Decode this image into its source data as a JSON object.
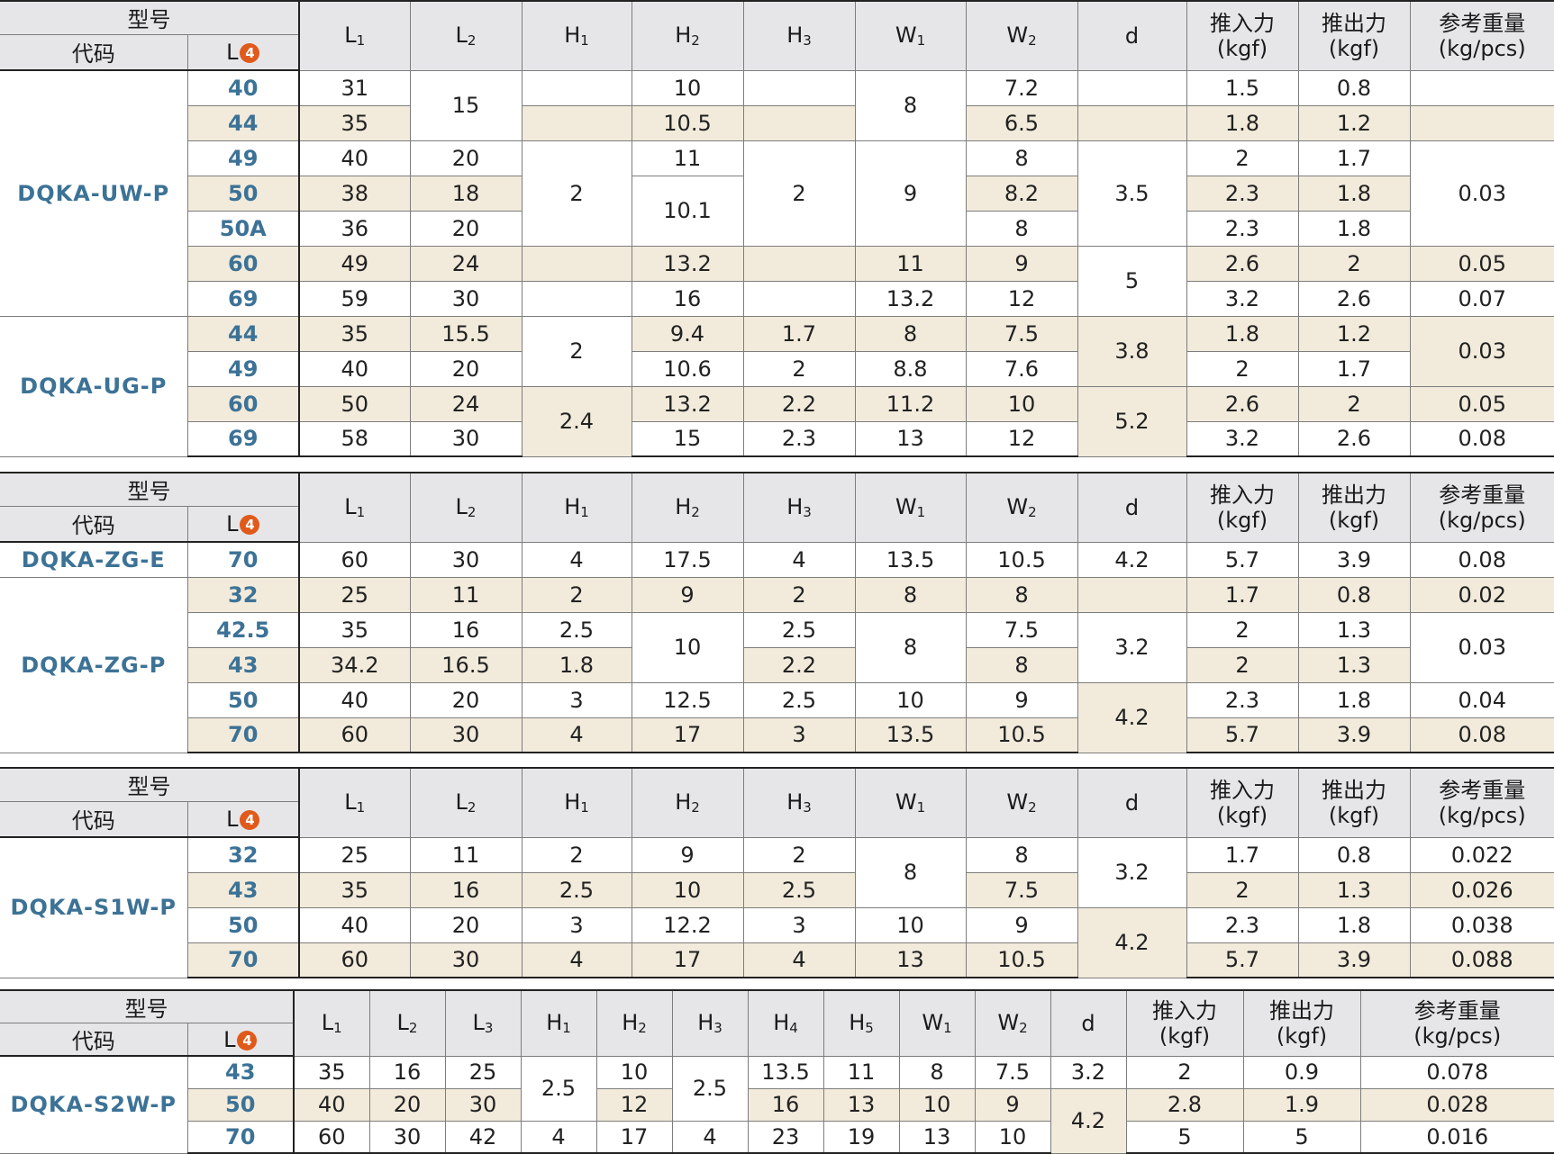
{
  "headers": {
    "model": "型号",
    "code": "代码",
    "l": "L",
    "badge": "4",
    "cols": [
      "L",
      "L",
      "H",
      "H",
      "H",
      "W",
      "W",
      "d"
    ],
    "subs": [
      "1",
      "2",
      "1",
      "2",
      "3",
      "1",
      "2",
      ""
    ],
    "push_in": "推入力",
    "push_out": "推出力",
    "weight": "参考重量",
    "kgf": "(kgf)",
    "kgpcs": "(kg/pcs)"
  },
  "table1": {
    "uw_code": "DQKA-UW-P",
    "ug_code": "DQKA-UG-P",
    "rows": [
      {
        "L": "40",
        "L1": "31",
        "H2": "10",
        "W2": "7.2",
        "push_in": "1.5",
        "push_out": "0.8"
      },
      {
        "L": "44",
        "L1": "35",
        "H2": "10.5",
        "W2": "6.5",
        "push_in": "1.8",
        "push_out": "1.2"
      },
      {
        "L": "49",
        "L1": "40",
        "L2": "20",
        "H2": "11",
        "W2": "8",
        "push_in": "2",
        "push_out": "1.7"
      },
      {
        "L": "50",
        "L1": "38",
        "L2": "18",
        "W2": "8.2",
        "push_in": "2.3",
        "push_out": "1.8"
      },
      {
        "L": "50A",
        "L1": "36",
        "L2": "20",
        "W2": "8",
        "push_in": "2.3",
        "push_out": "1.8"
      },
      {
        "L": "60",
        "L1": "49",
        "L2": "24",
        "H2": "13.2",
        "W1": "11",
        "W2": "9",
        "push_in": "2.6",
        "push_out": "2",
        "weight": "0.05"
      },
      {
        "L": "69",
        "L1": "59",
        "L2": "30",
        "H2": "16",
        "W1": "13.2",
        "W2": "12",
        "push_in": "3.2",
        "push_out": "2.6",
        "weight": "0.07"
      },
      {
        "L": "44",
        "L1": "35",
        "L2": "15.5",
        "H2": "9.4",
        "H3": "1.7",
        "W1": "8",
        "W2": "7.5",
        "push_in": "1.8",
        "push_out": "1.2"
      },
      {
        "L": "49",
        "L1": "40",
        "L2": "20",
        "H2": "10.6",
        "H3": "2",
        "W1": "8.8",
        "W2": "7.6",
        "push_in": "2",
        "push_out": "1.7"
      },
      {
        "L": "60",
        "L1": "50",
        "L2": "24",
        "H2": "13.2",
        "H3": "2.2",
        "W1": "11.2",
        "W2": "10",
        "push_in": "2.6",
        "push_out": "2",
        "weight": "0.05"
      },
      {
        "L": "69",
        "L1": "58",
        "L2": "30",
        "H2": "15",
        "H3": "2.3",
        "W1": "13",
        "W2": "12",
        "push_in": "3.2",
        "push_out": "2.6",
        "weight": "0.08"
      }
    ],
    "merged": {
      "L2_a": "15",
      "H1_a": "2",
      "H1_b": "2",
      "H1_c": "2.4",
      "H2_a": "10.1",
      "H3_a": "2",
      "W1_a": "8",
      "W1_b": "9",
      "d_a": "3.5",
      "d_b": "5",
      "d_c": "3.8",
      "d_d": "5.2",
      "w_a": "0.03",
      "w_b": "0.03"
    }
  },
  "table2": {
    "e_code": "DQKA-ZG-E",
    "p_code": "DQKA-ZG-P",
    "rows": [
      {
        "L": "70",
        "L1": "60",
        "L2": "30",
        "H1": "4",
        "H2": "17.5",
        "H3": "4",
        "W1": "13.5",
        "W2": "10.5",
        "d": "4.2",
        "push_in": "5.7",
        "push_out": "3.9",
        "weight": "0.08"
      },
      {
        "L": "32",
        "L1": "25",
        "L2": "11",
        "H1": "2",
        "H2": "9",
        "H3": "2",
        "W1": "8",
        "W2": "8",
        "push_in": "1.7",
        "push_out": "0.8",
        "weight": "0.02"
      },
      {
        "L": "42.5",
        "L1": "35",
        "L2": "16",
        "H1": "2.5",
        "H3": "2.5",
        "W2": "7.5",
        "push_in": "2",
        "push_out": "1.3"
      },
      {
        "L": "43",
        "L1": "34.2",
        "L2": "16.5",
        "H1": "1.8",
        "H3": "2.2",
        "W2": "8",
        "push_in": "2",
        "push_out": "1.3"
      },
      {
        "L": "50",
        "L1": "40",
        "L2": "20",
        "H1": "3",
        "H2": "12.5",
        "H3": "2.5",
        "W1": "10",
        "W2": "9",
        "push_in": "2.3",
        "push_out": "1.8",
        "weight": "0.04"
      },
      {
        "L": "70",
        "L1": "60",
        "L2": "30",
        "H1": "4",
        "H2": "17",
        "H3": "3",
        "W1": "13.5",
        "W2": "10.5",
        "push_in": "5.7",
        "push_out": "3.9",
        "weight": "0.08"
      }
    ],
    "merged": {
      "H2_a": "10",
      "W1_a": "8",
      "d_a": "3.2",
      "d_b": "4.2",
      "w_a": "0.03"
    }
  },
  "table3": {
    "code": "DQKA-S1W-P",
    "rows": [
      {
        "L": "32",
        "L1": "25",
        "L2": "11",
        "H1": "2",
        "H2": "9",
        "H3": "2",
        "W2": "8",
        "push_in": "1.7",
        "push_out": "0.8",
        "weight": "0.022"
      },
      {
        "L": "43",
        "L1": "35",
        "L2": "16",
        "H1": "2.5",
        "H2": "10",
        "H3": "2.5",
        "W2": "7.5",
        "push_in": "2",
        "push_out": "1.3",
        "weight": "0.026"
      },
      {
        "L": "50",
        "L1": "40",
        "L2": "20",
        "H1": "3",
        "H2": "12.2",
        "H3": "3",
        "W1": "10",
        "W2": "9",
        "push_in": "2.3",
        "push_out": "1.8",
        "weight": "0.038"
      },
      {
        "L": "70",
        "L1": "60",
        "L2": "30",
        "H1": "4",
        "H2": "17",
        "H3": "4",
        "W1": "13",
        "W2": "10.5",
        "push_in": "5.7",
        "push_out": "3.9",
        "weight": "0.088"
      }
    ],
    "merged": {
      "W1_a": "8",
      "d_a": "3.2",
      "d_b": "4.2"
    }
  },
  "table4": {
    "code": "DQKA-S2W-P",
    "cols": [
      "L",
      "L",
      "L",
      "H",
      "H",
      "H",
      "H",
      "H",
      "W",
      "W",
      "d"
    ],
    "subs": [
      "1",
      "2",
      "3",
      "1",
      "2",
      "3",
      "4",
      "5",
      "1",
      "2",
      ""
    ],
    "rows": [
      {
        "L": "43",
        "L1": "35",
        "L2": "16",
        "L3": "25",
        "H2": "10",
        "H4": "13.5",
        "H5": "11",
        "W1": "8",
        "W2": "7.5",
        "d": "3.2",
        "push_in": "2",
        "push_out": "0.9",
        "weight": "0.078"
      },
      {
        "L": "50",
        "L1": "40",
        "L2": "20",
        "L3": "30",
        "H2": "12",
        "H4": "16",
        "H5": "13",
        "W1": "10",
        "W2": "9",
        "push_in": "2.8",
        "push_out": "1.9",
        "weight": "0.028"
      },
      {
        "L": "70",
        "L1": "60",
        "L2": "30",
        "L3": "42",
        "H1": "4",
        "H2": "17",
        "H3": "4",
        "H4": "23",
        "H5": "19",
        "W1": "13",
        "W2": "10",
        "push_in": "5",
        "push_out": "5",
        "weight": "0.016"
      }
    ],
    "merged": {
      "H1_a": "2.5",
      "H3_a": "2.5",
      "d_a": "4.2"
    }
  }
}
